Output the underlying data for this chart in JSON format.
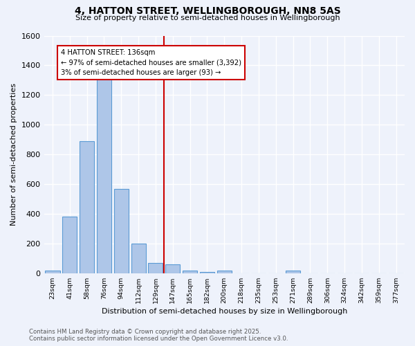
{
  "title1": "4, HATTON STREET, WELLINGBOROUGH, NN8 5AS",
  "title2": "Size of property relative to semi-detached houses in Wellingborough",
  "xlabel": "Distribution of semi-detached houses by size in Wellingborough",
  "ylabel": "Number of semi-detached properties",
  "bin_labels": [
    "23sqm",
    "41sqm",
    "58sqm",
    "76sqm",
    "94sqm",
    "112sqm",
    "129sqm",
    "147sqm",
    "165sqm",
    "182sqm",
    "200sqm",
    "218sqm",
    "235sqm",
    "253sqm",
    "271sqm",
    "289sqm",
    "306sqm",
    "324sqm",
    "342sqm",
    "359sqm",
    "377sqm"
  ],
  "bar_heights": [
    20,
    380,
    890,
    1310,
    570,
    200,
    70,
    60,
    20,
    10,
    20,
    0,
    0,
    0,
    20,
    0,
    0,
    0,
    0,
    0,
    0
  ],
  "bar_color": "#aec6e8",
  "bar_edge_color": "#5b9bd5",
  "property_value_label": "129sqm",
  "property_bin_index": 6,
  "vline_color": "#cc0000",
  "annotation_text": "4 HATTON STREET: 136sqm\n← 97% of semi-detached houses are smaller (3,392)\n3% of semi-detached houses are larger (93) →",
  "annotation_box_color": "#ffffff",
  "annotation_box_edge": "#cc0000",
  "ylim": [
    0,
    1600
  ],
  "yticks": [
    0,
    200,
    400,
    600,
    800,
    1000,
    1200,
    1400,
    1600
  ],
  "background_color": "#eef2fb",
  "grid_color": "#ffffff",
  "footer1": "Contains HM Land Registry data © Crown copyright and database right 2025.",
  "footer2": "Contains public sector information licensed under the Open Government Licence v3.0."
}
